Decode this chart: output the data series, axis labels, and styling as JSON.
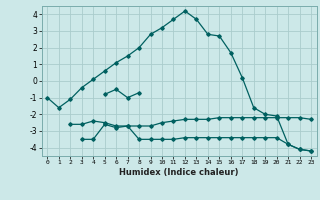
{
  "title": "",
  "xlabel": "Humidex (Indice chaleur)",
  "ylabel": "",
  "background_color": "#cce8e8",
  "line_color": "#006060",
  "grid_color": "#aacccc",
  "xlim": [
    -0.5,
    23.5
  ],
  "ylim": [
    -4.5,
    4.5
  ],
  "xticks": [
    0,
    1,
    2,
    3,
    4,
    5,
    6,
    7,
    8,
    9,
    10,
    11,
    12,
    13,
    14,
    15,
    16,
    17,
    18,
    19,
    20,
    21,
    22,
    23
  ],
  "yticks": [
    -4,
    -3,
    -2,
    -1,
    0,
    1,
    2,
    3,
    4
  ],
  "line1_x": [
    0,
    1,
    2,
    3,
    4,
    5,
    6,
    7,
    8,
    9,
    10,
    11,
    12,
    13,
    14,
    15,
    16,
    17,
    18,
    19,
    20,
    21,
    22,
    23
  ],
  "line1_y": [
    -1.0,
    -1.6,
    -1.1,
    -0.4,
    0.1,
    0.6,
    1.1,
    1.5,
    2.0,
    2.8,
    3.2,
    3.7,
    4.2,
    3.7,
    2.8,
    2.7,
    1.7,
    0.2,
    -1.6,
    -2.0,
    -2.1,
    -3.8,
    -4.1,
    -4.2
  ],
  "line2_x": [
    2,
    3,
    4,
    5,
    6,
    7,
    8,
    9,
    10,
    11,
    12,
    13,
    14,
    15,
    16,
    17,
    18,
    19,
    20,
    21,
    22,
    23
  ],
  "line2_y": [
    -2.6,
    -2.6,
    -2.4,
    -2.5,
    -2.7,
    -2.7,
    -2.7,
    -2.7,
    -2.5,
    -2.4,
    -2.3,
    -2.3,
    -2.3,
    -2.2,
    -2.2,
    -2.2,
    -2.2,
    -2.2,
    -2.2,
    -2.2,
    -2.2,
    -2.3
  ],
  "line3_x": [
    3,
    4,
    5,
    6,
    7,
    8,
    9,
    10,
    11,
    12,
    13,
    14,
    15,
    16,
    17,
    18,
    19,
    20,
    21,
    22,
    23
  ],
  "line3_y": [
    -3.5,
    -3.5,
    -2.6,
    -2.8,
    -2.7,
    -3.5,
    -3.5,
    -3.5,
    -3.5,
    -3.4,
    -3.4,
    -3.4,
    -3.4,
    -3.4,
    -3.4,
    -3.4,
    -3.4,
    -3.4,
    -3.8,
    -4.1,
    -4.2
  ],
  "line4_x": [
    5,
    6,
    7,
    8
  ],
  "line4_y": [
    -0.8,
    -0.5,
    -1.0,
    -0.7
  ]
}
